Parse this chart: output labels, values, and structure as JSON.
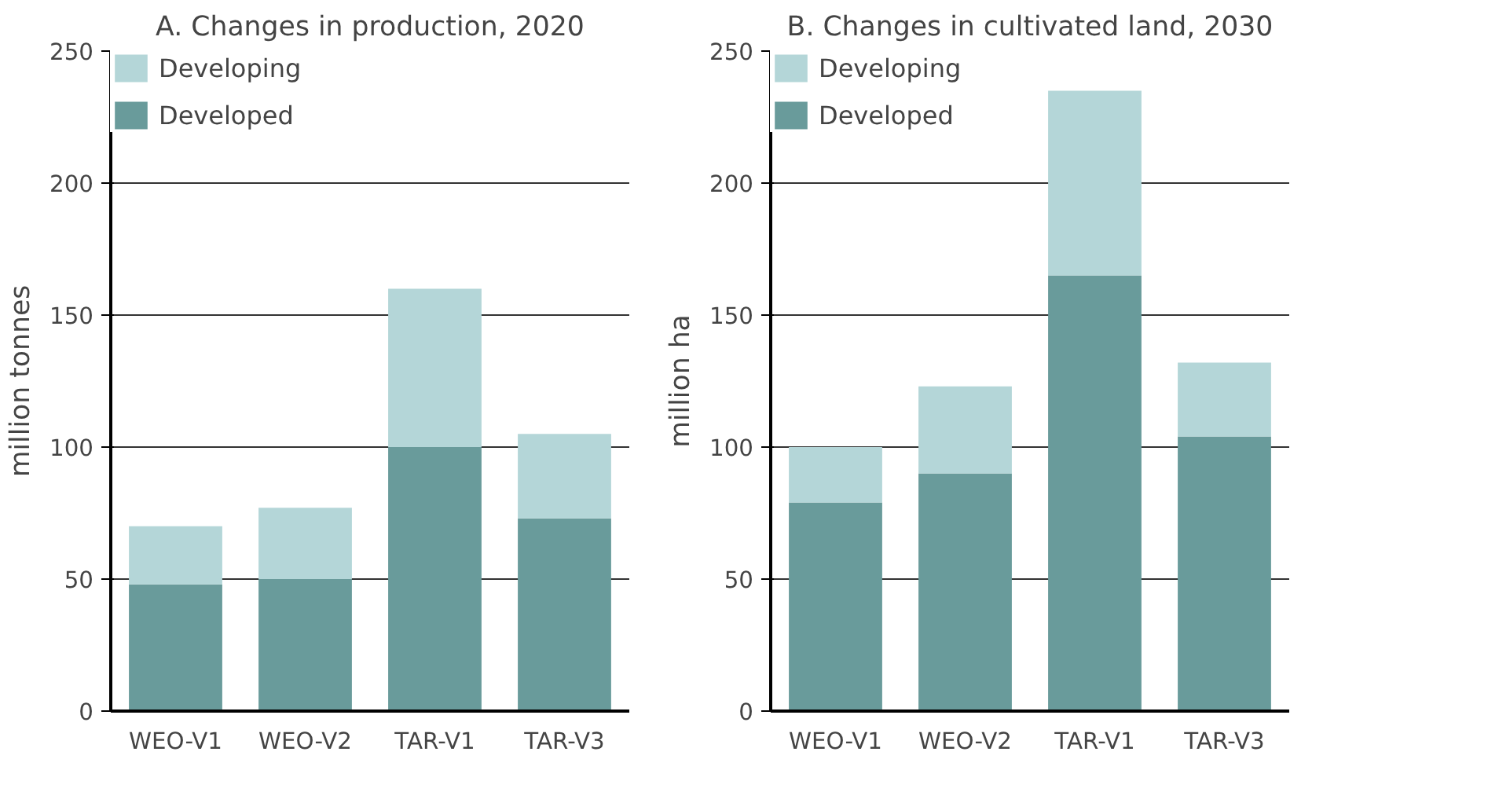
{
  "chart_data": [
    {
      "type": "bar",
      "title": "A. Changes in production, 2020",
      "ylabel": "million tonnes",
      "categories": [
        "WEO-V1",
        "WEO-V2",
        "TAR-V1",
        "TAR-V3"
      ],
      "stacked": true,
      "ylim": [
        0,
        250
      ],
      "yticks": [
        0,
        50,
        100,
        150,
        200,
        250
      ],
      "grid": "y",
      "legend": "top left",
      "series": [
        {
          "name": "Developed",
          "color": "#699b9b",
          "values": [
            48,
            50,
            100,
            73
          ]
        },
        {
          "name": "Developing",
          "color": "#b4d6d8",
          "values": [
            22,
            27,
            60,
            32
          ]
        }
      ]
    },
    {
      "type": "bar",
      "title": "B. Changes in cultivated land, 2030",
      "ylabel": "million ha",
      "categories": [
        "WEO-V1",
        "WEO-V2",
        "TAR-V1",
        "TAR-V3"
      ],
      "stacked": true,
      "ylim": [
        0,
        250
      ],
      "yticks": [
        0,
        50,
        100,
        150,
        200,
        250
      ],
      "grid": "y",
      "legend": "top left",
      "series": [
        {
          "name": "Developed",
          "color": "#699b9b",
          "values": [
            79,
            90,
            165,
            104
          ]
        },
        {
          "name": "Developing",
          "color": "#b4d6d8",
          "values": [
            21,
            33,
            70,
            28
          ]
        }
      ]
    }
  ]
}
